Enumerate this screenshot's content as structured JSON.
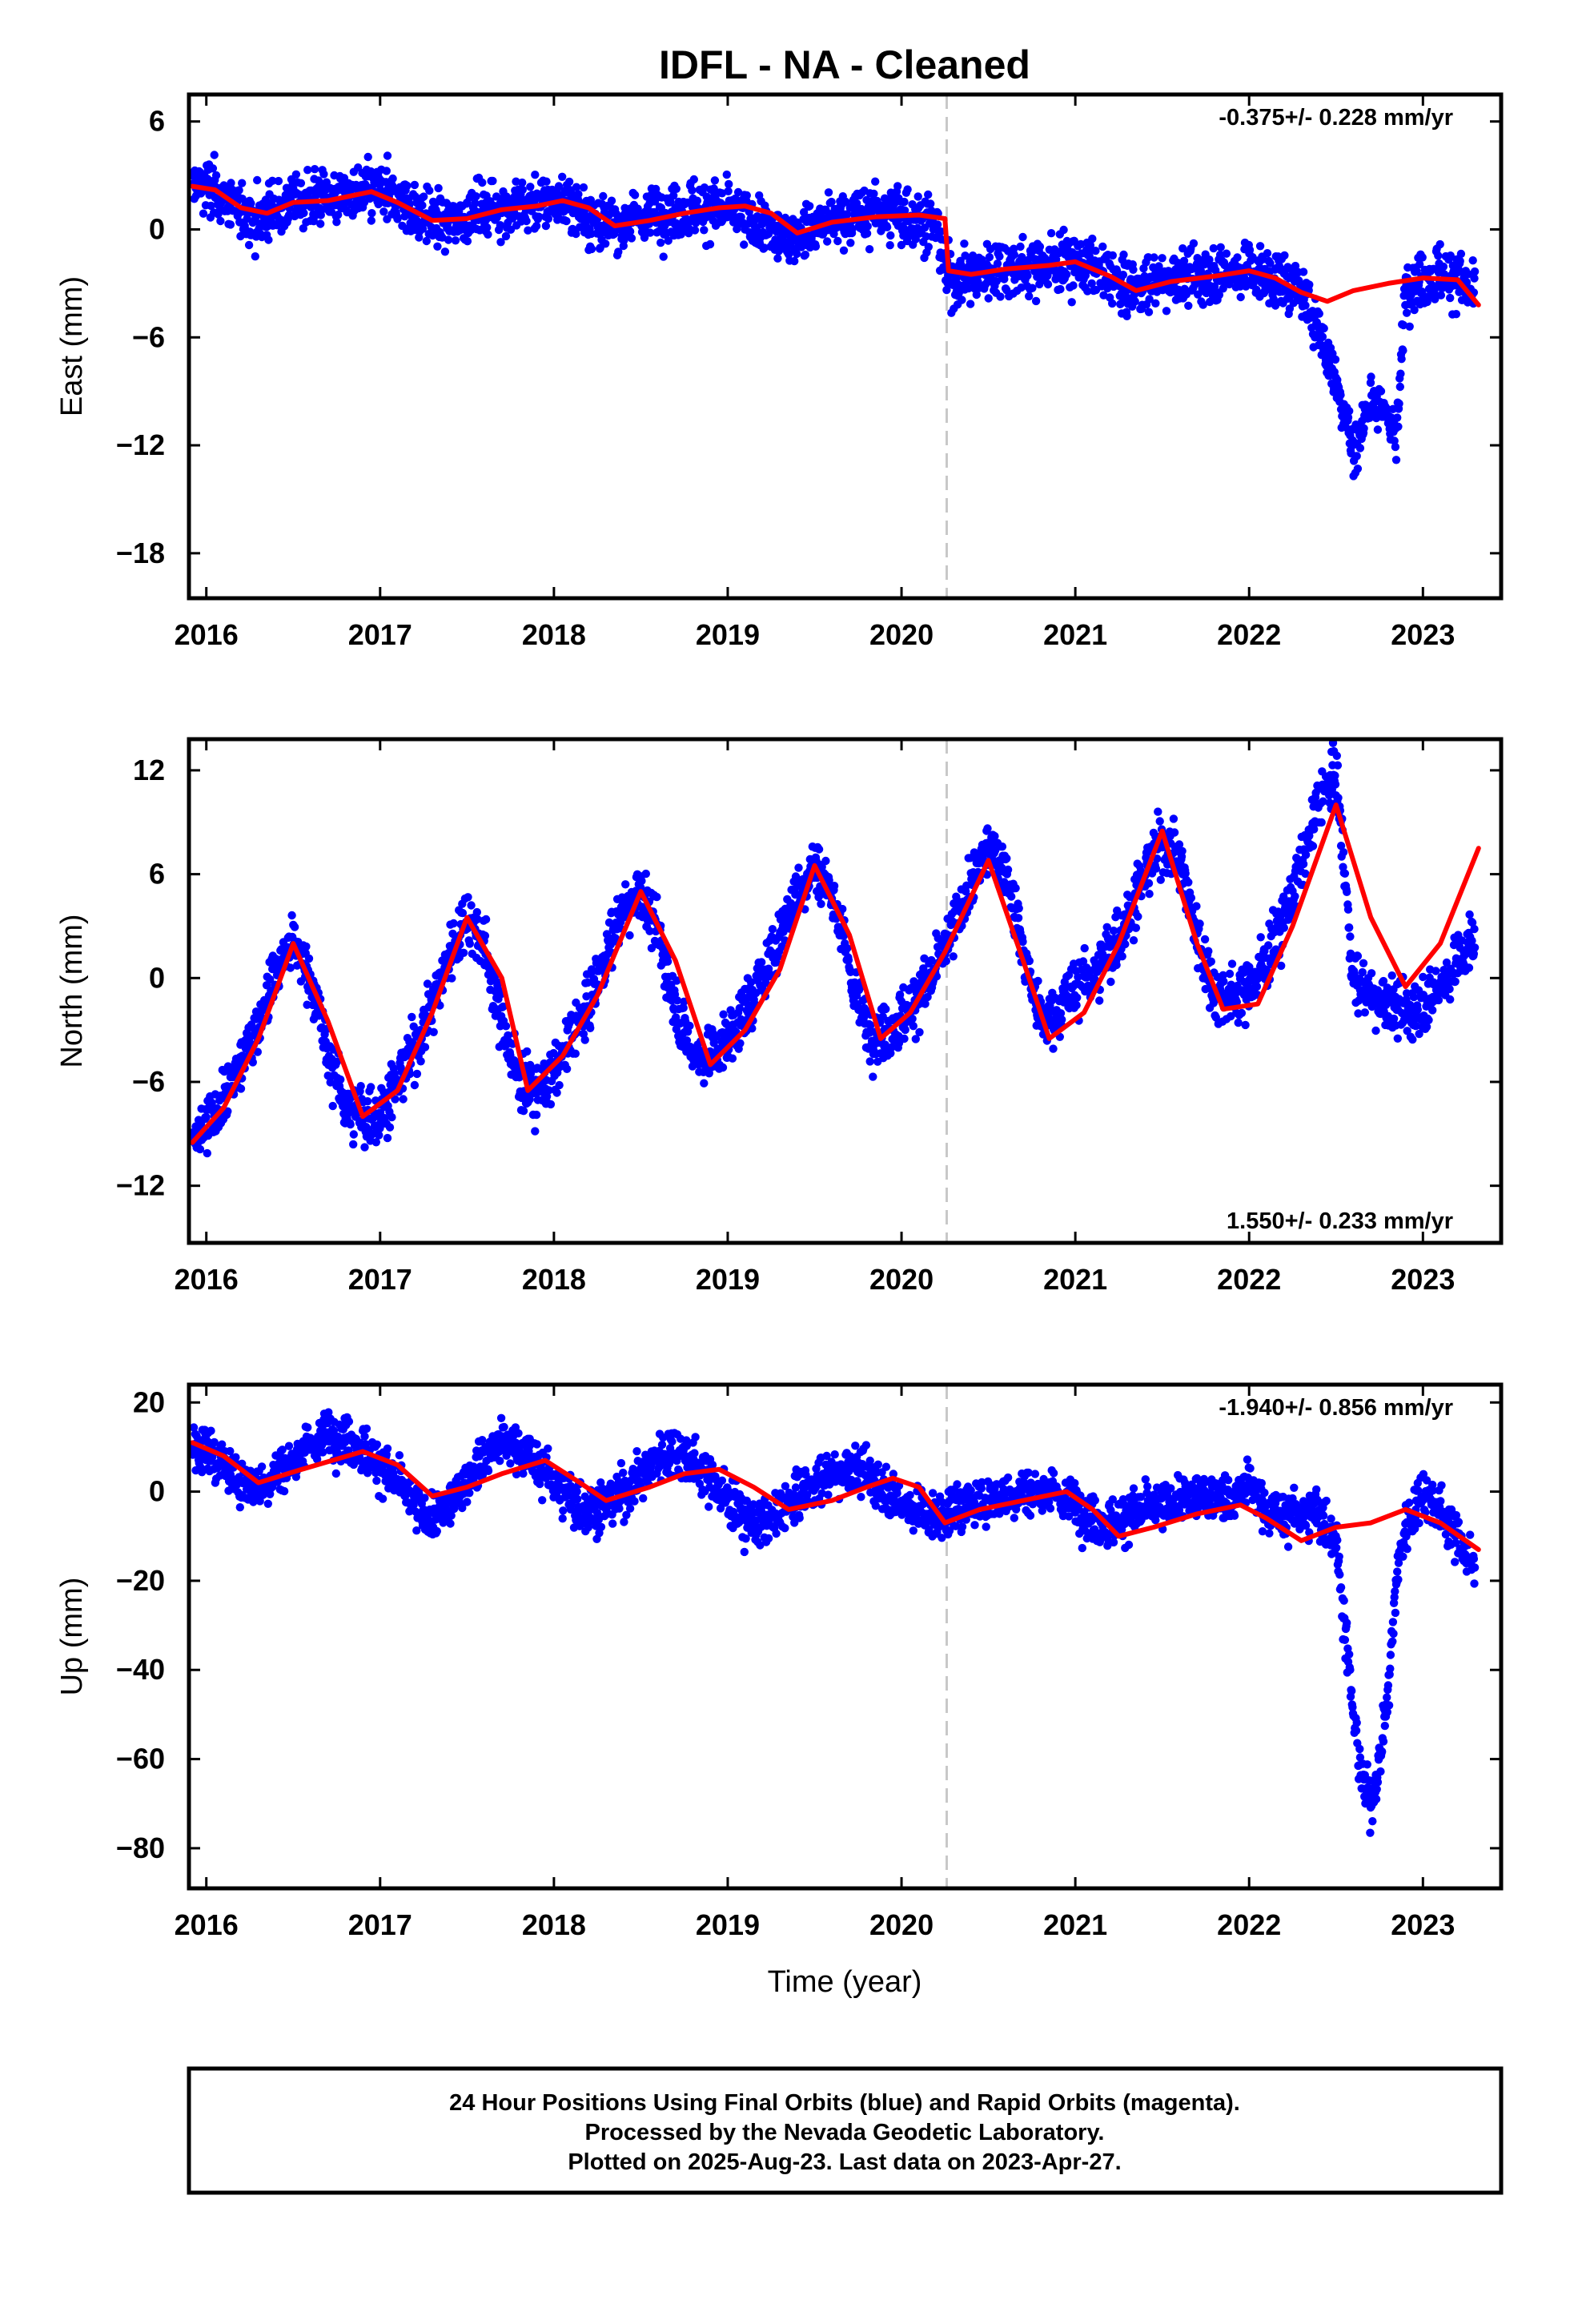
{
  "title": "IDFL  - NA - Cleaned",
  "x_axis_label": "Time (year)",
  "colors": {
    "points": "#0000ff",
    "model": "#ff0000",
    "event_line": "#c8c8c8",
    "frame": "#000000"
  },
  "caption": [
    "24 Hour Positions Using Final Orbits (blue) and Rapid Orbits (magenta).",
    "Processed by the Nevada Geodetic Laboratory.",
    "Plotted on 2025-Aug-23. Last data on 2023-Apr-27."
  ],
  "chart_data": [
    {
      "type": "scatter",
      "component": "east",
      "ylabel": "East (mm)",
      "rate_label": "-0.375+/- 0.228 mm/yr",
      "rate_label_position": "top-right",
      "xlim": [
        2015.9,
        2023.45
      ],
      "ylim": [
        -20.5,
        7.5
      ],
      "xticks": [
        2016,
        2017,
        2018,
        2019,
        2020,
        2021,
        2022,
        2023
      ],
      "yticks": [
        6,
        0,
        -6,
        -12,
        -18
      ],
      "ytick_labels": [
        "6",
        "0",
        "−6",
        "−12",
        "−18"
      ],
      "grid": false,
      "event_line_x": 2020.26,
      "series": [
        {
          "kind": "daily_positions",
          "marker": "dot",
          "color": "#0000ff",
          "x": [
            2015.92,
            2016.0,
            2016.1,
            2016.2,
            2016.3,
            2016.4,
            2016.5,
            2016.6,
            2016.7,
            2016.8,
            2016.9,
            2017.0,
            2017.1,
            2017.2,
            2017.3,
            2017.4,
            2017.5,
            2017.6,
            2017.7,
            2017.8,
            2017.9,
            2018.0,
            2018.1,
            2018.2,
            2018.3,
            2018.4,
            2018.5,
            2018.6,
            2018.7,
            2018.8,
            2018.9,
            2019.0,
            2019.1,
            2019.2,
            2019.3,
            2019.4,
            2019.5,
            2019.6,
            2019.7,
            2019.8,
            2019.9,
            2020.0,
            2020.1,
            2020.2,
            2020.26,
            2020.3,
            2020.4,
            2020.5,
            2020.6,
            2020.7,
            2020.8,
            2020.9,
            2021.0,
            2021.1,
            2021.2,
            2021.3,
            2021.4,
            2021.5,
            2021.6,
            2021.7,
            2021.8,
            2021.9,
            2022.0,
            2022.1,
            2022.2,
            2022.3,
            2022.4,
            2022.45,
            2022.5,
            2022.55,
            2022.6,
            2022.65,
            2022.7,
            2022.75,
            2022.8,
            2022.85,
            2022.9,
            2023.0,
            2023.1,
            2023.2,
            2023.3
          ],
          "y": [
            2.5,
            2.4,
            1.8,
            0.9,
            0.6,
            1.2,
            1.6,
            1.7,
            1.8,
            1.9,
            2.0,
            2.1,
            1.6,
            1.1,
            0.6,
            0.4,
            0.7,
            1.1,
            1.3,
            1.2,
            1.4,
            1.6,
            1.3,
            0.6,
            0.1,
            0.3,
            0.6,
            0.9,
            1.0,
            1.1,
            1.2,
            1.1,
            0.7,
            0.1,
            -0.4,
            -0.2,
            0.2,
            0.5,
            0.7,
            0.8,
            0.9,
            0.8,
            0.6,
            0.2,
            -2.5,
            -2.7,
            -2.4,
            -2.2,
            -2.2,
            -2.1,
            -2.0,
            -1.9,
            -1.8,
            -2.0,
            -2.8,
            -3.3,
            -3.0,
            -2.8,
            -2.7,
            -2.6,
            -2.5,
            -2.4,
            -2.2,
            -2.6,
            -3.0,
            -3.4,
            -5.5,
            -7.0,
            -8.5,
            -10.0,
            -12.5,
            -11.0,
            -9.0,
            -10.5,
            -10.0,
            -12.0,
            -3.0,
            -2.8,
            -2.5,
            -2.7,
            -3.8
          ],
          "spread": 1.3
        },
        {
          "kind": "model_fit",
          "line": "smooth",
          "color": "#ff0000",
          "x": [
            2015.92,
            2016.05,
            2016.2,
            2016.35,
            2016.5,
            2016.7,
            2016.95,
            2017.1,
            2017.3,
            2017.5,
            2017.7,
            2017.9,
            2018.05,
            2018.2,
            2018.35,
            2018.55,
            2018.75,
            2018.95,
            2019.1,
            2019.25,
            2019.4,
            2019.6,
            2019.85,
            2020.1,
            2020.25,
            2020.27,
            2020.4,
            2020.6,
            2020.85,
            2021.0,
            2021.2,
            2021.35,
            2021.55,
            2021.8,
            2022.0,
            2022.15,
            2022.3,
            2022.45,
            2022.6,
            2022.8,
            2023.0,
            2023.2,
            2023.32
          ],
          "y": [
            2.4,
            2.2,
            1.2,
            0.9,
            1.5,
            1.6,
            2.1,
            1.5,
            0.5,
            0.6,
            1.1,
            1.3,
            1.6,
            1.2,
            0.2,
            0.5,
            0.9,
            1.2,
            1.3,
            0.9,
            -0.2,
            0.4,
            0.7,
            0.8,
            0.6,
            -2.3,
            -2.5,
            -2.2,
            -2.0,
            -1.8,
            -2.6,
            -3.4,
            -2.9,
            -2.6,
            -2.3,
            -2.7,
            -3.5,
            -4.0,
            -3.4,
            -3.0,
            -2.7,
            -2.8,
            -4.2
          ]
        }
      ]
    },
    {
      "type": "scatter",
      "component": "north",
      "ylabel": "North (mm)",
      "rate_label": "1.550+/- 0.233 mm/yr",
      "rate_label_position": "bottom-right",
      "xlim": [
        2015.9,
        2023.45
      ],
      "ylim": [
        -15.3,
        13.8
      ],
      "xticks": [
        2016,
        2017,
        2018,
        2019,
        2020,
        2021,
        2022,
        2023
      ],
      "yticks": [
        12,
        6,
        0,
        -6,
        -12
      ],
      "ytick_labels": [
        "12",
        "6",
        "0",
        "−6",
        "−12"
      ],
      "grid": false,
      "event_line_x": 2020.26,
      "series": [
        {
          "kind": "daily_positions",
          "marker": "dot",
          "color": "#0000ff",
          "x": [
            2015.92,
            2016.0,
            2016.1,
            2016.2,
            2016.3,
            2016.4,
            2016.5,
            2016.6,
            2016.7,
            2016.8,
            2016.9,
            2017.0,
            2017.1,
            2017.2,
            2017.3,
            2017.4,
            2017.5,
            2017.6,
            2017.7,
            2017.8,
            2017.9,
            2018.0,
            2018.1,
            2018.2,
            2018.3,
            2018.4,
            2018.5,
            2018.6,
            2018.7,
            2018.8,
            2018.9,
            2019.0,
            2019.1,
            2019.2,
            2019.3,
            2019.4,
            2019.5,
            2019.6,
            2019.7,
            2019.8,
            2019.9,
            2020.0,
            2020.1,
            2020.2,
            2020.3,
            2020.4,
            2020.5,
            2020.6,
            2020.7,
            2020.8,
            2020.9,
            2021.0,
            2021.1,
            2021.2,
            2021.3,
            2021.4,
            2021.5,
            2021.6,
            2021.7,
            2021.8,
            2021.9,
            2022.0,
            2022.1,
            2022.2,
            2022.3,
            2022.4,
            2022.5,
            2022.6,
            2022.7,
            2022.8,
            2022.9,
            2023.0,
            2023.1,
            2023.2,
            2023.3
          ],
          "y": [
            -9.5,
            -8.5,
            -7.0,
            -5.0,
            -2.5,
            0.5,
            2.0,
            0.0,
            -4.5,
            -7.5,
            -8.0,
            -7.8,
            -6.0,
            -4.0,
            -1.5,
            1.5,
            3.5,
            2.0,
            -2.5,
            -6.0,
            -6.5,
            -5.5,
            -3.5,
            -1.5,
            1.5,
            4.0,
            5.0,
            2.5,
            -1.5,
            -4.5,
            -4.5,
            -3.5,
            -2.0,
            0.0,
            2.5,
            5.0,
            6.5,
            5.0,
            0.5,
            -3.0,
            -3.2,
            -2.5,
            -1.0,
            0.5,
            3.0,
            5.5,
            7.5,
            6.5,
            1.5,
            -2.5,
            -2.0,
            -0.5,
            0.0,
            1.5,
            3.5,
            6.0,
            8.0,
            7.0,
            2.5,
            -1.0,
            -1.0,
            -0.5,
            1.0,
            3.5,
            6.5,
            10.0,
            12.0,
            0.0,
            -1.0,
            -1.5,
            -2.0,
            -1.5,
            -0.5,
            1.0,
            2.5
          ],
          "spread": 1.4
        },
        {
          "kind": "model_fit",
          "line": "smooth",
          "color": "#ff0000",
          "x": [
            2015.92,
            2016.1,
            2016.3,
            2016.5,
            2016.7,
            2016.9,
            2017.1,
            2017.3,
            2017.5,
            2017.7,
            2017.85,
            2018.05,
            2018.25,
            2018.5,
            2018.7,
            2018.9,
            2019.1,
            2019.3,
            2019.5,
            2019.7,
            2019.88,
            2020.05,
            2020.25,
            2020.5,
            2020.7,
            2020.85,
            2021.05,
            2021.25,
            2021.5,
            2021.7,
            2021.85,
            2022.05,
            2022.25,
            2022.5,
            2022.7,
            2022.9,
            2023.1,
            2023.32
          ],
          "y": [
            -9.5,
            -7.5,
            -3.5,
            2.0,
            -2.5,
            -8.0,
            -6.5,
            -2.0,
            3.5,
            0.0,
            -6.5,
            -4.5,
            -1.0,
            5.0,
            1.0,
            -5.0,
            -3.0,
            0.5,
            6.5,
            2.5,
            -3.5,
            -2.0,
            1.5,
            6.8,
            1.0,
            -3.5,
            -2.0,
            2.0,
            8.5,
            2.0,
            -1.8,
            -1.5,
            3.0,
            10.0,
            3.5,
            -0.5,
            2.0,
            7.5
          ]
        }
      ]
    },
    {
      "type": "scatter",
      "component": "up",
      "ylabel": "Up (mm)",
      "rate_label": "-1.940+/- 0.856 mm/yr",
      "rate_label_position": "top-right",
      "xlim": [
        2015.9,
        2023.45
      ],
      "ylim": [
        -89,
        24
      ],
      "xticks": [
        2016,
        2017,
        2018,
        2019,
        2020,
        2021,
        2022,
        2023
      ],
      "yticks": [
        20,
        0,
        -20,
        -40,
        -60,
        -80
      ],
      "ytick_labels": [
        "20",
        "0",
        "−20",
        "−40",
        "−60",
        "−80"
      ],
      "grid": false,
      "event_line_x": 2020.26,
      "series": [
        {
          "kind": "daily_positions",
          "marker": "dot",
          "color": "#0000ff",
          "x": [
            2015.92,
            2016.0,
            2016.1,
            2016.2,
            2016.3,
            2016.4,
            2016.5,
            2016.6,
            2016.7,
            2016.8,
            2016.9,
            2017.0,
            2017.1,
            2017.2,
            2017.3,
            2017.4,
            2017.5,
            2017.6,
            2017.7,
            2017.8,
            2017.9,
            2018.0,
            2018.1,
            2018.2,
            2018.3,
            2018.4,
            2018.5,
            2018.6,
            2018.7,
            2018.8,
            2018.9,
            2019.0,
            2019.1,
            2019.2,
            2019.3,
            2019.4,
            2019.5,
            2019.6,
            2019.7,
            2019.8,
            2019.9,
            2020.0,
            2020.1,
            2020.2,
            2020.3,
            2020.4,
            2020.5,
            2020.6,
            2020.7,
            2020.8,
            2020.9,
            2021.0,
            2021.1,
            2021.2,
            2021.3,
            2021.4,
            2021.5,
            2021.6,
            2021.7,
            2021.8,
            2021.9,
            2022.0,
            2022.1,
            2022.2,
            2022.3,
            2022.4,
            2022.5,
            2022.55,
            2022.6,
            2022.65,
            2022.7,
            2022.75,
            2022.8,
            2022.85,
            2022.9,
            2023.0,
            2023.1,
            2023.2,
            2023.3
          ],
          "y": [
            10,
            9,
            6,
            2,
            1,
            4,
            7,
            10,
            13,
            12,
            9,
            6,
            2,
            -3,
            -6,
            -3,
            3,
            8,
            11,
            10,
            6,
            2,
            -2,
            -4,
            -3,
            0,
            4,
            8,
            9,
            7,
            3,
            -2,
            -6,
            -7,
            -5,
            -1,
            2,
            4,
            5,
            4,
            1,
            -3,
            -4,
            -6,
            -4,
            -3,
            -2,
            -1,
            0,
            0,
            -1,
            -3,
            -6,
            -8,
            -5,
            -4,
            -3,
            -2,
            -1,
            0,
            -2,
            2,
            -4,
            -6,
            -5,
            -5,
            -10,
            -30,
            -50,
            -65,
            -70,
            -60,
            -45,
            -18,
            -8,
            0,
            -4,
            -10,
            -18
          ],
          "spread": 4.5
        },
        {
          "kind": "model_fit",
          "line": "smooth",
          "color": "#ff0000",
          "x": [
            2015.92,
            2016.1,
            2016.3,
            2016.55,
            2016.9,
            2017.1,
            2017.3,
            2017.5,
            2017.7,
            2017.95,
            2018.15,
            2018.3,
            2018.55,
            2018.75,
            2018.95,
            2019.15,
            2019.35,
            2019.6,
            2019.8,
            2019.95,
            2020.1,
            2020.25,
            2020.45,
            2020.7,
            2020.95,
            2021.1,
            2021.25,
            2021.45,
            2021.7,
            2021.95,
            2022.1,
            2022.3,
            2022.5,
            2022.7,
            2022.9,
            2023.1,
            2023.32
          ],
          "y": [
            11,
            8,
            2,
            5,
            9,
            6,
            -1,
            1,
            4,
            7,
            2,
            -2,
            1,
            4,
            5,
            1,
            -4,
            -2,
            1,
            3,
            1,
            -7,
            -4,
            -2,
            0,
            -4,
            -10,
            -8,
            -5,
            -3,
            -6,
            -11,
            -8,
            -7,
            -4,
            -7,
            -13
          ]
        }
      ]
    }
  ]
}
